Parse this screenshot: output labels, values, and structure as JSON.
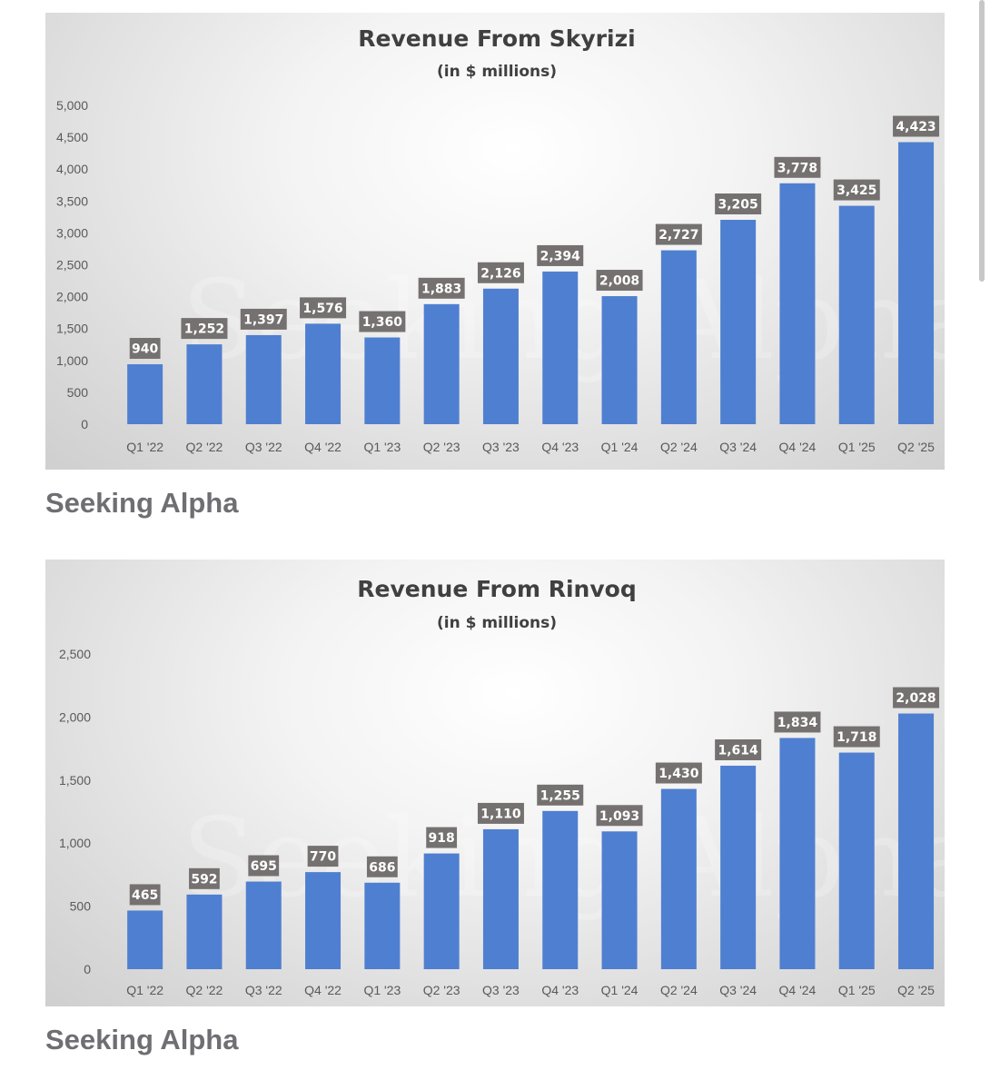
{
  "charts": [
    {
      "id": "chart1",
      "title": "Revenue From Skyrizi",
      "subtitle": "(in $ millions)",
      "watermark": "Seeking Alpha",
      "source": "Seeking Alpha"
    },
    {
      "id": "chart2",
      "title": "Revenue From Rinvoq",
      "subtitle": "(in $ millions)",
      "watermark": "Seeking Alpha",
      "source": "Seeking Alpha"
    }
  ],
  "chart_data": [
    {
      "type": "bar",
      "title": "Revenue From Skyrizi",
      "subtitle": "(in $ millions)",
      "categories": [
        "Q1 '22",
        "Q2 '22",
        "Q3 '22",
        "Q4 '22",
        "Q1 '23",
        "Q2 '23",
        "Q3 '23",
        "Q4 '23",
        "Q1 '24",
        "Q2 '24",
        "Q3 '24",
        "Q4 '24",
        "Q1 '25",
        "Q2 '25"
      ],
      "values": [
        940,
        1252,
        1397,
        1576,
        1360,
        1883,
        2126,
        2394,
        2008,
        2727,
        3205,
        3778,
        3425,
        4423
      ],
      "data_labels": [
        "940",
        "1,252",
        "1,397",
        "1,576",
        "1,360",
        "1,883",
        "2,126",
        "2,394",
        "2,008",
        "2,727",
        "3,205",
        "3,778",
        "3,425",
        "4,423"
      ],
      "yticks": [
        "0",
        "500",
        "1,000",
        "1,500",
        "2,000",
        "2,500",
        "3,000",
        "3,500",
        "4,000",
        "4,500",
        "5,000"
      ],
      "ylim": [
        0,
        5000
      ],
      "xlabel": "",
      "ylabel": "",
      "grid": false,
      "legend": "none",
      "bar_color": "#4f7fd0"
    },
    {
      "type": "bar",
      "title": "Revenue From Rinvoq",
      "subtitle": "(in $ millions)",
      "categories": [
        "Q1 '22",
        "Q2 '22",
        "Q3 '22",
        "Q4 '22",
        "Q1 '23",
        "Q2 '23",
        "Q3 '23",
        "Q4 '23",
        "Q1 '24",
        "Q2 '24",
        "Q3 '24",
        "Q4 '24",
        "Q1 '25",
        "Q2 '25"
      ],
      "values": [
        465,
        592,
        695,
        770,
        686,
        918,
        1110,
        1255,
        1093,
        1430,
        1614,
        1834,
        1718,
        2028
      ],
      "data_labels": [
        "465",
        "592",
        "695",
        "770",
        "686",
        "918",
        "1,110",
        "1,255",
        "1,093",
        "1,430",
        "1,614",
        "1,834",
        "1,718",
        "2,028"
      ],
      "yticks": [
        "0",
        "500",
        "1,000",
        "1,500",
        "2,000",
        "2,500"
      ],
      "ylim": [
        0,
        2500
      ],
      "xlabel": "",
      "ylabel": "",
      "grid": false,
      "legend": "none",
      "bar_color": "#4f7fd0"
    }
  ]
}
